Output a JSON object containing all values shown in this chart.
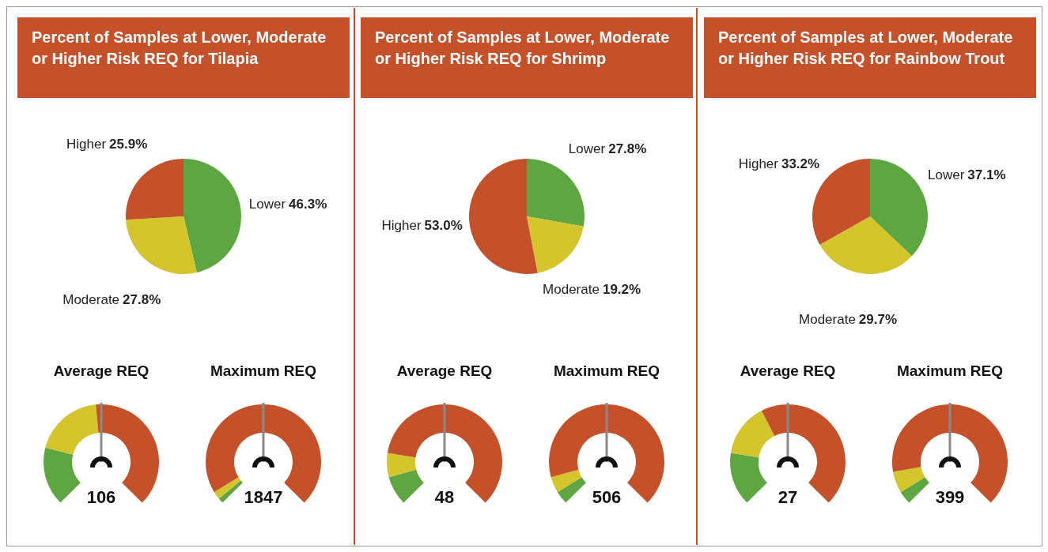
{
  "chart_data": [
    {
      "type": "pie",
      "title": "Percent of Samples at Lower, Moderate or Higher Risk REQ for Tilapia",
      "categories": [
        "Lower",
        "Moderate",
        "Higher"
      ],
      "values": [
        46.3,
        27.8,
        25.9
      ],
      "value_labels": [
        "46.3%",
        "27.8%",
        "25.9%"
      ],
      "colors": [
        "#5ea642",
        "#d4c52c",
        "#c4512a"
      ]
    },
    {
      "type": "donut",
      "title": "Average REQ",
      "categories": [
        null,
        null,
        null
      ],
      "values": [
        22,
        26,
        52
      ],
      "colors": [
        "#5ea642",
        "#d4c52c",
        "#c4512a"
      ],
      "annotations": [
        "106"
      ]
    },
    {
      "type": "donut",
      "title": "Maximum REQ",
      "categories": [
        null,
        null,
        null
      ],
      "values": [
        2,
        3,
        95
      ],
      "colors": [
        "#5ea642",
        "#d4c52c",
        "#c4512a"
      ],
      "annotations": [
        "1847"
      ]
    },
    {
      "type": "pie",
      "title": "Percent of Samples at Lower, Moderate or Higher Risk REQ for Shrimp",
      "categories": [
        "Lower",
        "Moderate",
        "Higher"
      ],
      "values": [
        27.8,
        19.2,
        53.0
      ],
      "value_labels": [
        "27.8%",
        "19.2%",
        "53.0%"
      ],
      "colors": [
        "#5ea642",
        "#d4c52c",
        "#c4512a"
      ]
    },
    {
      "type": "donut",
      "title": "Average REQ",
      "categories": [
        null,
        null,
        null
      ],
      "values": [
        11,
        9,
        80
      ],
      "colors": [
        "#5ea642",
        "#d4c52c",
        "#c4512a"
      ],
      "annotations": [
        "48"
      ]
    },
    {
      "type": "donut",
      "title": "Maximum REQ",
      "categories": [
        null,
        null,
        null
      ],
      "values": [
        5,
        6,
        89
      ],
      "colors": [
        "#5ea642",
        "#d4c52c",
        "#c4512a"
      ],
      "annotations": [
        "506"
      ]
    },
    {
      "type": "pie",
      "title": "Percent of Samples at Lower, Moderate or Higher Risk REQ for Rainbow Trout",
      "categories": [
        "Lower",
        "Moderate",
        "Higher"
      ],
      "values": [
        37.1,
        29.7,
        33.2
      ],
      "value_labels": [
        "37.1%",
        "29.7%",
        "33.2%"
      ],
      "colors": [
        "#5ea642",
        "#d4c52c",
        "#c4512a"
      ]
    },
    {
      "type": "donut",
      "title": "Average REQ",
      "categories": [
        null,
        null,
        null
      ],
      "values": [
        20,
        20,
        60
      ],
      "colors": [
        "#5ea642",
        "#d4c52c",
        "#c4512a"
      ],
      "annotations": [
        "27"
      ]
    },
    {
      "type": "donut",
      "title": "Maximum REQ",
      "categories": [
        null,
        null,
        null
      ],
      "values": [
        5,
        8,
        87
      ],
      "colors": [
        "#5ea642",
        "#d4c52c",
        "#c4512a"
      ],
      "annotations": [
        "399"
      ]
    }
  ]
}
